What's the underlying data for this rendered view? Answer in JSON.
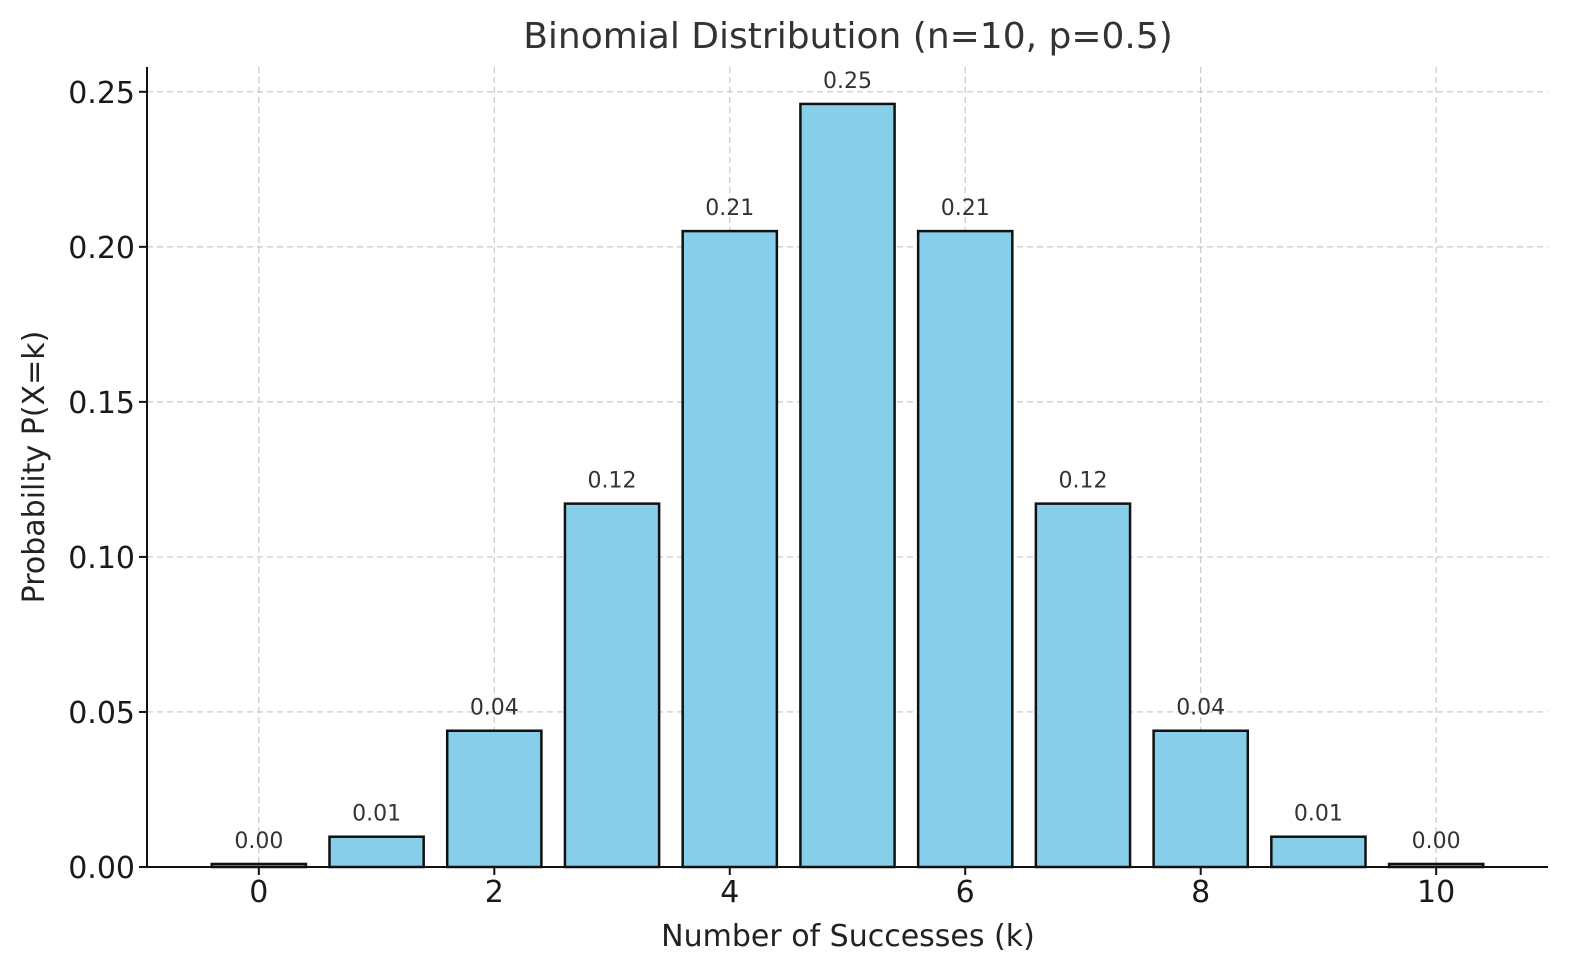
{
  "chart_data": {
    "type": "bar",
    "title": "Binomial Distribution (n=10, p=0.5)",
    "xlabel": "Number of Successes (k)",
    "ylabel": "Probability P(X=k)",
    "x": [
      0,
      1,
      2,
      3,
      4,
      5,
      6,
      7,
      8,
      9,
      10
    ],
    "values": [
      0.000977,
      0.009766,
      0.043945,
      0.117188,
      0.205078,
      0.246094,
      0.205078,
      0.117188,
      0.043945,
      0.009766,
      0.000977
    ],
    "value_labels": [
      "0.00",
      "0.01",
      "0.04",
      "0.12",
      "0.21",
      "0.25",
      "0.21",
      "0.12",
      "0.04",
      "0.01",
      "0.00"
    ],
    "xticks": [
      0,
      2,
      4,
      6,
      8,
      10
    ],
    "xtick_labels": [
      "0",
      "2",
      "4",
      "6",
      "8",
      "10"
    ],
    "yticks": [
      0.0,
      0.05,
      0.1,
      0.15,
      0.2,
      0.25
    ],
    "ytick_labels": [
      "0.00",
      "0.05",
      "0.10",
      "0.15",
      "0.20",
      "0.25"
    ],
    "xlim": [
      -0.95,
      10.95
    ],
    "ylim": [
      0,
      0.258
    ],
    "grid": true,
    "bar_color": "#87CEEB",
    "edge_color": "#111111"
  }
}
